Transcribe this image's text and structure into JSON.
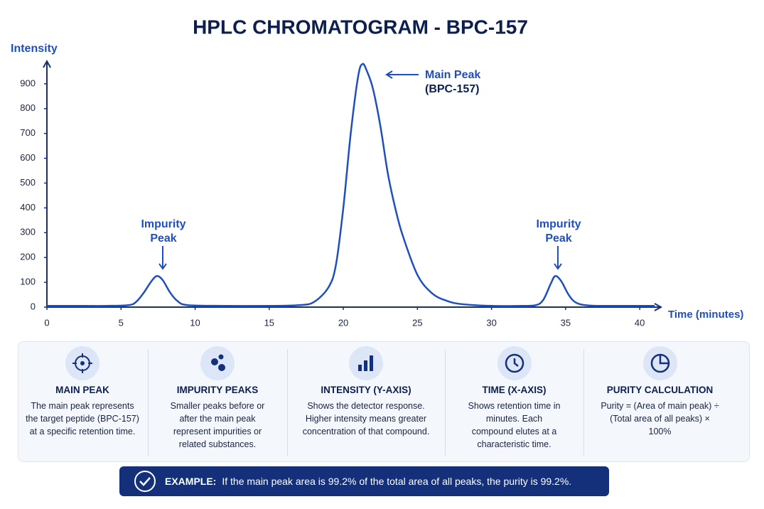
{
  "chart_data": {
    "type": "line",
    "title": "HPLC CHROMATOGRAM - BPC-157",
    "y_label": "Intensity",
    "x_label": "Time (minutes)",
    "x": [
      0,
      2,
      4,
      5.5,
      6,
      6.5,
      7,
      7.4,
      7.8,
      8.3,
      8.8,
      9.5,
      12,
      15,
      17,
      18,
      19,
      19.5,
      20,
      20.5,
      21,
      21.3,
      21.6,
      22,
      22.5,
      23,
      23.5,
      24,
      25,
      26,
      27,
      28,
      30,
      32,
      33,
      33.5,
      34,
      34.3,
      34.7,
      35.2,
      35.7,
      36.5,
      38,
      41
    ],
    "values": [
      5,
      5,
      5,
      8,
      20,
      55,
      100,
      125,
      110,
      60,
      25,
      8,
      5,
      5,
      8,
      20,
      80,
      170,
      400,
      700,
      930,
      980,
      950,
      880,
      730,
      540,
      400,
      290,
      130,
      55,
      25,
      12,
      5,
      5,
      8,
      30,
      95,
      125,
      105,
      50,
      18,
      7,
      5,
      5
    ],
    "color": "#1f4fbf",
    "xlim": [
      0,
      41
    ],
    "ylim": [
      0,
      1000
    ],
    "xticks": [
      0,
      5,
      10,
      15,
      20,
      25,
      30,
      35,
      40
    ],
    "yticks": [
      0,
      100,
      200,
      300,
      400,
      500,
      600,
      700,
      800,
      900
    ],
    "annotations": [
      [
        "Impurity",
        "Peak"
      ],
      [
        "Main Peak",
        "(BPC-157)"
      ],
      [
        "Impurity",
        "Peak"
      ]
    ]
  },
  "cards": [
    {
      "title": "MAIN PEAK",
      "text": "The main peak represents the target peptide (BPC-157) at a specific retention time."
    },
    {
      "title": "IMPURITY PEAKS",
      "text": "Smaller peaks before or after the main peak represent impurities or related substances."
    },
    {
      "title": "INTENSITY (Y-AXIS)",
      "text": "Shows the detector response. Higher intensity means greater concentration of that compound."
    },
    {
      "title": "TIME (X-AXIS)",
      "text": "Shows retention time in minutes. Each compound elutes at a characteristic time."
    },
    {
      "title": "PURITY CALCULATION",
      "text": "Purity = (Area of main peak) ÷ (Total area of all peaks) × 100%"
    }
  ],
  "example": {
    "label": "EXAMPLE:",
    "text": "If the main peak area is 99.2% of the total area of all peaks, the purity is 99.2%."
  }
}
